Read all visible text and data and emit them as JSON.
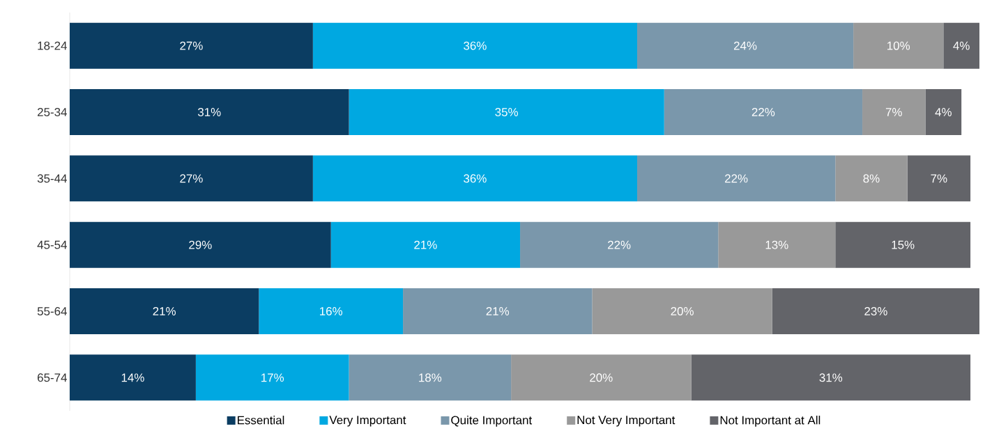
{
  "chart_data": {
    "type": "bar",
    "orientation": "horizontal",
    "stacked": true,
    "legend": "bottom",
    "categories": [
      "18-24",
      "25-34",
      "35-44",
      "45-54",
      "55-64",
      "65-74"
    ],
    "series": [
      {
        "name": "Essential",
        "color": "#0b3d62",
        "values": [
          27,
          31,
          27,
          29,
          21,
          14
        ],
        "value_labels": [
          "27%",
          "31%",
          "27%",
          "29%",
          "21%",
          "14%"
        ]
      },
      {
        "name": "Very Important",
        "color": "#00a8e1",
        "values": [
          36,
          35,
          36,
          21,
          16,
          17
        ],
        "value_labels": [
          "36%",
          "35%",
          "36%",
          "21%",
          "16%",
          "17%"
        ]
      },
      {
        "name": "Quite Important",
        "color": "#7a97ab",
        "values": [
          24,
          22,
          22,
          22,
          21,
          18
        ],
        "value_labels": [
          "24%",
          "22%",
          "22%",
          "22%",
          "21%",
          "18%"
        ]
      },
      {
        "name": "Not Very Important",
        "color": "#999999",
        "values": [
          10,
          7,
          8,
          13,
          20,
          20
        ],
        "value_labels": [
          "10%",
          "7%",
          "8%",
          "13%",
          "20%",
          "20%"
        ]
      },
      {
        "name": "Not Important at All",
        "color": "#636469",
        "values": [
          4,
          4,
          7,
          15,
          23,
          31
        ],
        "value_labels": [
          "4%",
          "4%",
          "7%",
          "15%",
          "23%",
          "31%"
        ]
      }
    ]
  }
}
